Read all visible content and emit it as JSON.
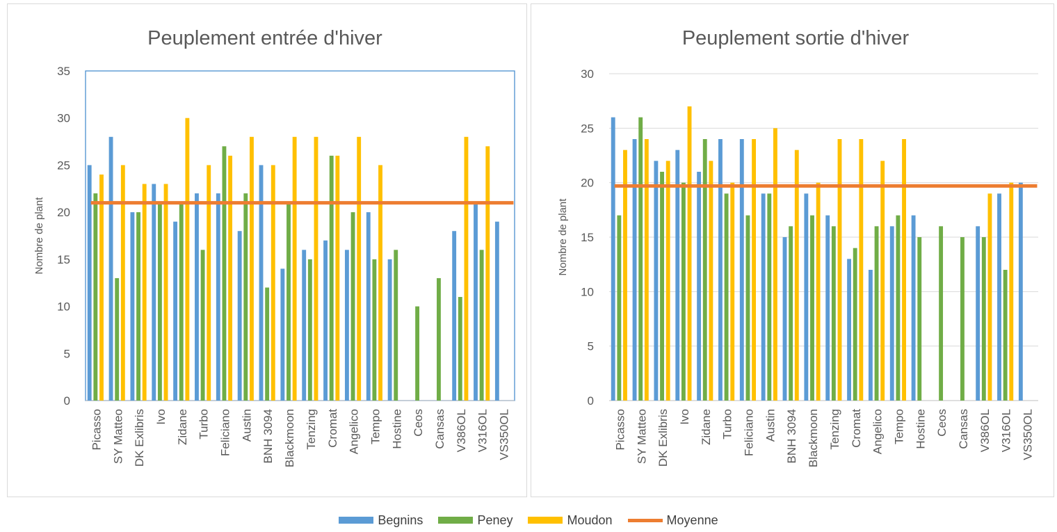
{
  "legend": [
    {
      "label": "Begnins",
      "color": "#5b9bd5",
      "kind": "bar"
    },
    {
      "label": "Peney",
      "color": "#70ad47",
      "kind": "bar"
    },
    {
      "label": "Moudon",
      "color": "#ffc000",
      "kind": "bar"
    },
    {
      "label": "Moyenne",
      "color": "#ed7d31",
      "kind": "line"
    }
  ],
  "chart_data": [
    {
      "type": "bar",
      "title": "Peuplement entrée d'hiver",
      "xlabel": "",
      "ylabel": "Nombre de plant",
      "ylim": [
        0,
        35
      ],
      "yticks": [
        "0",
        "5",
        "10",
        "15",
        "20",
        "25",
        "30",
        "35"
      ],
      "grid": false,
      "plot_border": true,
      "categories": [
        "Picasso",
        "SY Matteo",
        "DK Exlibris",
        "Ivo",
        "Zidane",
        "Turbo",
        "Feliciano",
        "Austin",
        "BNH 3094",
        "Blackmoon",
        "Tenzing",
        "Cromat",
        "Angelico",
        "Tempo",
        "Hostine",
        "Ceos",
        "Cansas",
        "V386OL",
        "V316OL",
        "VS350OL"
      ],
      "series": [
        {
          "name": "Begnins",
          "color": "#5b9bd5",
          "values": [
            25,
            28,
            20,
            23,
            19,
            22,
            22,
            18,
            25,
            14,
            16,
            17,
            16,
            20,
            15,
            null,
            null,
            18,
            21,
            19
          ]
        },
        {
          "name": "Peney",
          "color": "#70ad47",
          "values": [
            22,
            13,
            20,
            21,
            21,
            16,
            27,
            22,
            12,
            21,
            15,
            26,
            20,
            15,
            16,
            10,
            13,
            11,
            16,
            null
          ]
        },
        {
          "name": "Moudon",
          "color": "#ffc000",
          "values": [
            24,
            25,
            23,
            23,
            30,
            25,
            26,
            28,
            25,
            28,
            28,
            26,
            28,
            25,
            null,
            null,
            null,
            28,
            27,
            null
          ]
        }
      ],
      "mean_line": {
        "name": "Moyenne",
        "color": "#ed7d31",
        "value": 21
      }
    },
    {
      "type": "bar",
      "title": "Peuplement sortie d'hiver",
      "xlabel": "",
      "ylabel": "Nombre de plant",
      "ylim": [
        0,
        30
      ],
      "yticks": [
        "0",
        "5",
        "10",
        "15",
        "20",
        "25",
        "30"
      ],
      "grid": true,
      "plot_border": false,
      "categories": [
        "Picasso",
        "SY Matteo",
        "DK Exlibris",
        "Ivo",
        "Zidane",
        "Turbo",
        "Feliciano",
        "Austin",
        "BNH 3094",
        "Blackmoon",
        "Tenzing",
        "Cromat",
        "Angelico",
        "Tempo",
        "Hostine",
        "Ceos",
        "Cansas",
        "V386OL",
        "V316OL",
        "VS350OL"
      ],
      "series": [
        {
          "name": "Begnins",
          "color": "#5b9bd5",
          "values": [
            26,
            24,
            22,
            23,
            21,
            24,
            24,
            19,
            15,
            19,
            17,
            13,
            12,
            16,
            17,
            null,
            null,
            16,
            19,
            20
          ]
        },
        {
          "name": "Peney",
          "color": "#70ad47",
          "values": [
            17,
            26,
            21,
            20,
            24,
            19,
            17,
            19,
            16,
            17,
            16,
            14,
            16,
            17,
            15,
            16,
            15,
            15,
            12,
            null
          ]
        },
        {
          "name": "Moudon",
          "color": "#ffc000",
          "values": [
            23,
            24,
            22,
            27,
            22,
            20,
            24,
            25,
            23,
            20,
            24,
            24,
            22,
            24,
            null,
            null,
            null,
            19,
            20,
            null
          ]
        }
      ],
      "mean_line": {
        "name": "Moyenne",
        "color": "#ed7d31",
        "value": 19.7
      }
    }
  ]
}
